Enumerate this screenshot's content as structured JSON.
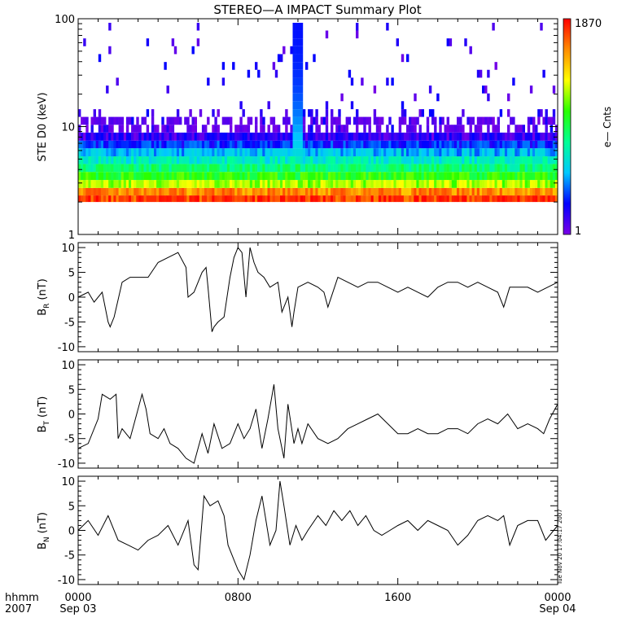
{
  "title": "STEREO—A IMPACT Summary Plot",
  "timestamp": "Tue Nov 20 17:04:17 2007",
  "colors": {
    "line": "#000000",
    "axis": "#000000",
    "background": "#ffffff"
  },
  "chart_data": [
    {
      "type": "heatmap",
      "title": "STEREO—A IMPACT Summary Plot",
      "ylabel": "STE D0 (keV)",
      "yscale": "log",
      "ylim": [
        1,
        100
      ],
      "yticks": [
        "1",
        "10",
        "100"
      ],
      "x_range_hours": [
        0,
        24
      ],
      "colorbar": {
        "label": "e— Cnts",
        "min_label": "1",
        "max_label": "1870",
        "scale": "log",
        "colors": [
          "#7a00e6",
          "#0000ff",
          "#00c8ff",
          "#00ff96",
          "#28ff00",
          "#ffff00",
          "#ff8c00",
          "#ff0000"
        ]
      },
      "energy_channels_kev": [
        2.0,
        2.3,
        2.7,
        3.2,
        3.8,
        4.5,
        5.3,
        6.3,
        7.4,
        8.8,
        10.4,
        12.3,
        14.5,
        17.2,
        20.3,
        24.0,
        28.4,
        33.6,
        39.7,
        47.0,
        55.6,
        65.7,
        77.7
      ],
      "typical_counts_by_channel": [
        1300,
        700,
        150,
        70,
        35,
        18,
        9,
        4,
        2,
        1,
        1,
        0,
        0,
        0,
        0,
        0,
        0,
        0,
        0,
        0,
        0,
        0,
        0
      ],
      "enhancement": {
        "start_hours": 10.8,
        "end_hours": 11.2,
        "max_kev": 100
      }
    },
    {
      "type": "line",
      "ylabel": "B",
      "ylabel_sub": "R",
      "yunit": "(nT)",
      "ylim": [
        -11,
        11
      ],
      "yticks": [
        -10,
        -5,
        0,
        5,
        10
      ],
      "x": [
        0,
        0.5,
        0.8,
        1.2,
        1.5,
        1.6,
        1.8,
        2.2,
        2.6,
        3.0,
        3.5,
        4.0,
        4.5,
        5.0,
        5.4,
        5.5,
        5.8,
        6.2,
        6.4,
        6.5,
        6.7,
        6.8,
        7.0,
        7.3,
        7.6,
        7.8,
        8.0,
        8.2,
        8.4,
        8.6,
        8.8,
        9.0,
        9.3,
        9.6,
        10.0,
        10.2,
        10.5,
        10.7,
        10.8,
        11.0,
        11.5,
        12.0,
        12.3,
        12.5,
        13.0,
        13.5,
        14.0,
        14.5,
        15.0,
        15.5,
        16.0,
        16.5,
        17.0,
        17.5,
        18.0,
        18.5,
        19.0,
        19.5,
        20.0,
        20.5,
        21.0,
        21.3,
        21.6,
        22.0,
        22.5,
        23.0,
        23.5,
        24.0
      ],
      "y": [
        0,
        1,
        -1,
        1,
        -5,
        -6,
        -4,
        3,
        4,
        4,
        4,
        7,
        8,
        9,
        6,
        0,
        1,
        5,
        6,
        2,
        -7,
        -6,
        -5,
        -4,
        4,
        8,
        10,
        9,
        0,
        10,
        7,
        5,
        4,
        2,
        3,
        -3,
        0,
        -6,
        -3,
        2,
        3,
        2,
        1,
        -2,
        4,
        3,
        2,
        3,
        3,
        2,
        1,
        2,
        1,
        0,
        2,
        3,
        3,
        2,
        3,
        2,
        1,
        -2,
        2,
        2,
        2,
        1,
        2,
        3
      ]
    },
    {
      "type": "line",
      "ylabel": "B",
      "ylabel_sub": "T",
      "yunit": "(nT)",
      "ylim": [
        -11,
        11
      ],
      "yticks": [
        -10,
        -5,
        0,
        5,
        10
      ],
      "x": [
        0,
        0.5,
        1.0,
        1.2,
        1.6,
        1.9,
        2.0,
        2.2,
        2.4,
        2.6,
        3.2,
        3.4,
        3.6,
        4.0,
        4.3,
        4.6,
        5.0,
        5.4,
        5.8,
        6.2,
        6.5,
        6.8,
        7.2,
        7.6,
        8.0,
        8.3,
        8.6,
        8.9,
        9.2,
        9.5,
        9.8,
        10.0,
        10.3,
        10.5,
        10.8,
        11.0,
        11.2,
        11.5,
        12.0,
        12.5,
        13.0,
        13.5,
        14.0,
        14.5,
        15.0,
        15.5,
        16.0,
        16.5,
        17.0,
        17.5,
        18.0,
        18.5,
        19.0,
        19.5,
        20.0,
        20.5,
        21.0,
        21.5,
        22.0,
        22.5,
        23.0,
        23.3,
        23.6,
        24.0
      ],
      "y": [
        -7,
        -6,
        -1,
        4,
        3,
        4,
        -5,
        -3,
        -4,
        -5,
        4,
        1,
        -4,
        -5,
        -3,
        -6,
        -7,
        -9,
        -10,
        -4,
        -8,
        -2,
        -7,
        -6,
        -2,
        -5,
        -3,
        1,
        -7,
        -1,
        6,
        -3,
        -9,
        2,
        -6,
        -3,
        -6,
        -2,
        -5,
        -6,
        -5,
        -3,
        -2,
        -1,
        0,
        -2,
        -4,
        -4,
        -3,
        -4,
        -4,
        -3,
        -3,
        -4,
        -2,
        -1,
        -2,
        0,
        -3,
        -2,
        -3,
        -4,
        -1,
        2
      ]
    },
    {
      "type": "line",
      "ylabel": "B",
      "ylabel_sub": "N",
      "yunit": "(nT)",
      "ylim": [
        -11,
        11
      ],
      "yticks": [
        -10,
        -5,
        0,
        5,
        10
      ],
      "x": [
        0,
        0.5,
        1.0,
        1.5,
        2.0,
        2.5,
        3.0,
        3.5,
        4.0,
        4.5,
        5.0,
        5.5,
        5.8,
        6.0,
        6.3,
        6.6,
        7.0,
        7.3,
        7.5,
        7.8,
        8.0,
        8.3,
        8.6,
        8.9,
        9.2,
        9.6,
        9.9,
        10.1,
        10.3,
        10.6,
        10.9,
        11.2,
        11.5,
        12.0,
        12.4,
        12.8,
        13.2,
        13.6,
        14.0,
        14.4,
        14.8,
        15.2,
        15.6,
        16.0,
        16.5,
        17.0,
        17.5,
        18.0,
        18.5,
        19.0,
        19.5,
        20.0,
        20.5,
        21.0,
        21.3,
        21.6,
        22.0,
        22.5,
        23.0,
        23.4,
        23.8,
        24.0
      ],
      "y": [
        0,
        2,
        -1,
        3,
        -2,
        -3,
        -4,
        -2,
        -1,
        1,
        -3,
        2,
        -7,
        -8,
        7,
        5,
        6,
        3,
        -3,
        -6,
        -8,
        -10,
        -5,
        2,
        7,
        -3,
        0,
        10,
        5,
        -3,
        1,
        -2,
        0,
        3,
        1,
        4,
        2,
        4,
        1,
        3,
        0,
        -1,
        0,
        1,
        2,
        0,
        2,
        1,
        0,
        -3,
        -1,
        2,
        3,
        2,
        3,
        -3,
        1,
        2,
        2,
        -2,
        0,
        1
      ]
    }
  ],
  "x_axis": {
    "ticks": [
      {
        "hours": 0,
        "label": "0000",
        "sublabel": "Sep 03"
      },
      {
        "hours": 8,
        "label": "0800",
        "sublabel": ""
      },
      {
        "hours": 16,
        "label": "1600",
        "sublabel": ""
      },
      {
        "hours": 24,
        "label": "0000",
        "sublabel": "Sep 04"
      }
    ],
    "corner_label": "hhmm",
    "corner_sublabel": "2007"
  }
}
